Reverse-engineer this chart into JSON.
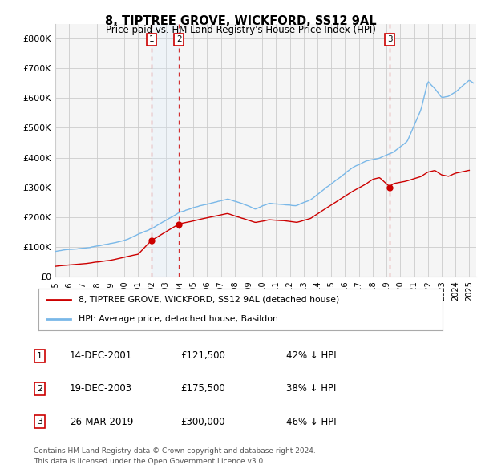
{
  "title": "8, TIPTREE GROVE, WICKFORD, SS12 9AL",
  "subtitle": "Price paid vs. HM Land Registry's House Price Index (HPI)",
  "legend_line1": "8, TIPTREE GROVE, WICKFORD, SS12 9AL (detached house)",
  "legend_line2": "HPI: Average price, detached house, Basildon",
  "footer1": "Contains HM Land Registry data © Crown copyright and database right 2024.",
  "footer2": "This data is licensed under the Open Government Licence v3.0.",
  "transactions": [
    {
      "num": 1,
      "date": "14-DEC-2001",
      "price": "£121,500",
      "pct": "42% ↓ HPI",
      "year": 2001.96,
      "value": 121500
    },
    {
      "num": 2,
      "date": "19-DEC-2003",
      "price": "£175,500",
      "pct": "38% ↓ HPI",
      "year": 2003.96,
      "value": 175500
    },
    {
      "num": 3,
      "date": "26-MAR-2019",
      "price": "£300,000",
      "pct": "46% ↓ HPI",
      "year": 2019.23,
      "value": 300000
    }
  ],
  "hpi_color": "#7ab8e8",
  "price_color": "#cc0000",
  "vline_color": "#cc0000",
  "shade_color": "#ddeeff",
  "grid_color": "#cccccc",
  "bg_color": "#ffffff",
  "plot_bg": "#f5f5f5",
  "ylim": [
    0,
    850000
  ],
  "xlim_start": 1995.0,
  "xlim_end": 2025.5,
  "yticks": [
    0,
    100000,
    200000,
    300000,
    400000,
    500000,
    600000,
    700000,
    800000
  ],
  "ytick_labels": [
    "£0",
    "£100K",
    "£200K",
    "£300K",
    "£400K",
    "£500K",
    "£600K",
    "£700K",
    "£800K"
  ]
}
